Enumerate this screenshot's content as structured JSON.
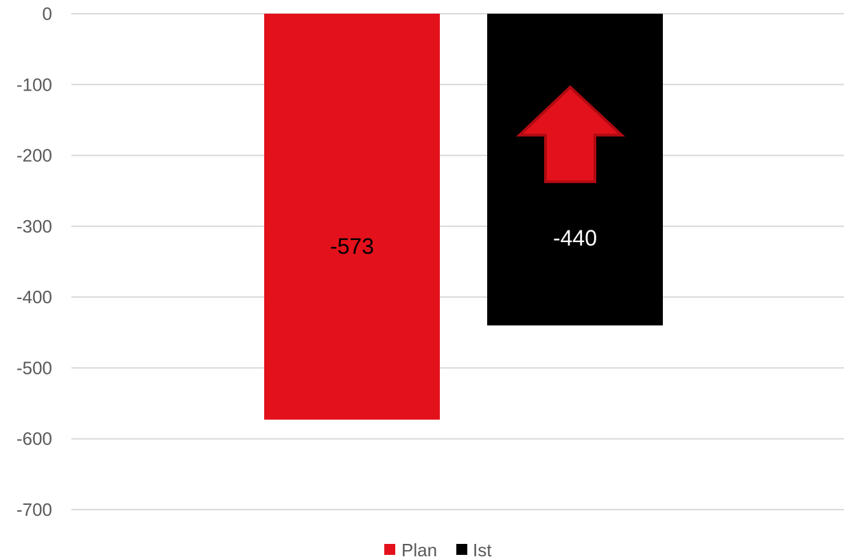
{
  "chart_data": {
    "type": "bar",
    "categories": [
      ""
    ],
    "series": [
      {
        "name": "Plan",
        "values": [
          -573
        ],
        "color": "#e3111b",
        "label_color": "#000000"
      },
      {
        "name": "Ist",
        "values": [
          -440
        ],
        "color": "#000000",
        "label_color": "#ffffff"
      }
    ],
    "data_labels": [
      "-573",
      "-440"
    ],
    "yticks": [
      "0",
      "-100",
      "-200",
      "-300",
      "-400",
      "-500",
      "-600",
      "-700"
    ],
    "ylim": [
      -700,
      0
    ],
    "grid": true,
    "legend_position": "bottom",
    "annotation": {
      "shape": "arrow-up-icon",
      "fill": "#e3111b",
      "stroke": "#b00a12",
      "on_series": "Ist"
    }
  }
}
